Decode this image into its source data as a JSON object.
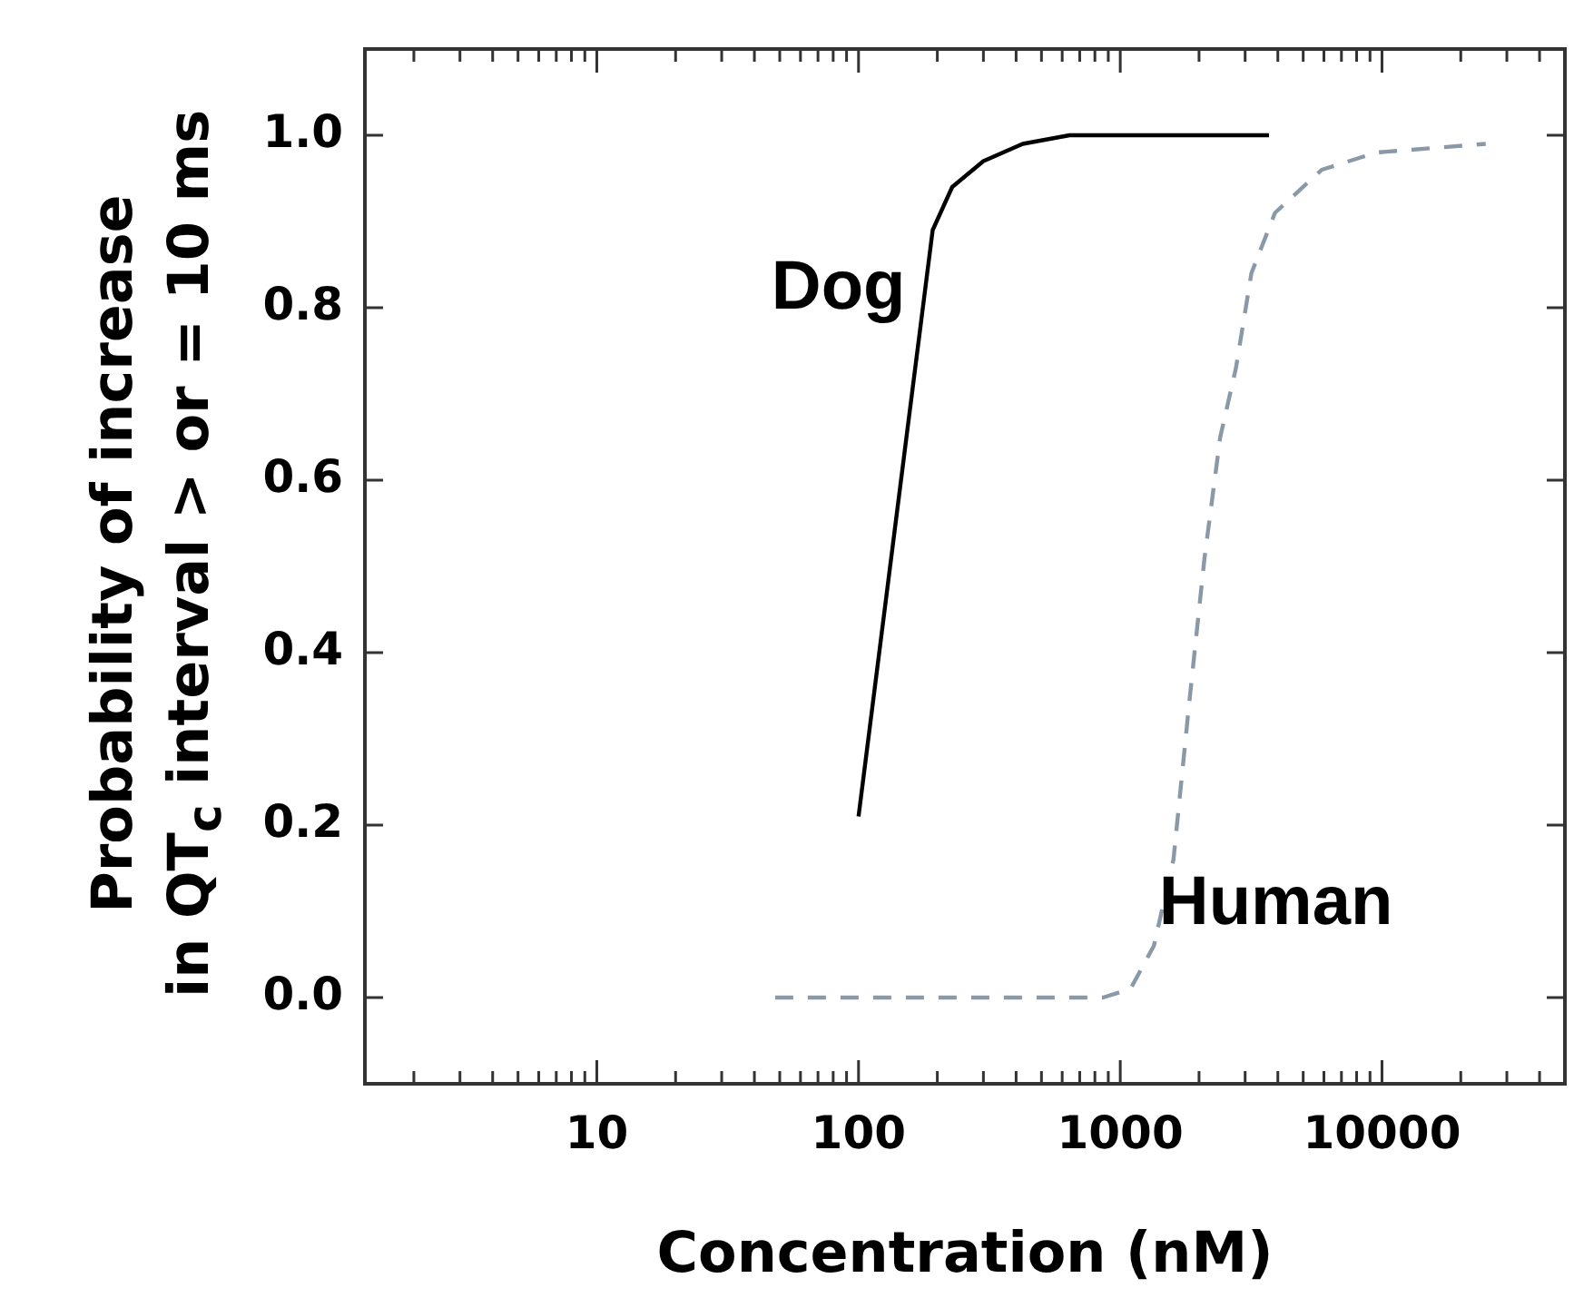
{
  "chart_data": {
    "type": "line",
    "xlabel": "Concentration (nM)",
    "ylabel": "Probability of increase\nin QT$_{c}$ interval > or = 10 ms",
    "log": "x",
    "grid": false,
    "legend": false,
    "marker": "none",
    "xlim": [
      1.3,
      50000
    ],
    "ylim": [
      -0.1,
      1.1
    ],
    "xticks": [
      {
        "value": 2,
        "label": null
      },
      {
        "value": 3,
        "label": null
      },
      {
        "value": 4,
        "label": null
      },
      {
        "value": 5,
        "label": null
      },
      {
        "value": 6,
        "label": null
      },
      {
        "value": 7,
        "label": null
      },
      {
        "value": 8,
        "label": null
      },
      {
        "value": 9,
        "label": null
      },
      10,
      {
        "value": 20,
        "label": null
      },
      {
        "value": 30,
        "label": null
      },
      {
        "value": 40,
        "label": null
      },
      {
        "value": 50,
        "label": null
      },
      {
        "value": 60,
        "label": null
      },
      {
        "value": 70,
        "label": null
      },
      {
        "value": 80,
        "label": null
      },
      {
        "value": 90,
        "label": null
      },
      100,
      {
        "value": 200,
        "label": null
      },
      {
        "value": 300,
        "label": null
      },
      {
        "value": 400,
        "label": null
      },
      {
        "value": 500,
        "label": null
      },
      {
        "value": 600,
        "label": null
      },
      {
        "value": 700,
        "label": null
      },
      {
        "value": 800,
        "label": null
      },
      {
        "value": 900,
        "label": null
      },
      1000,
      {
        "value": 2000,
        "label": null
      },
      {
        "value": 3000,
        "label": null
      },
      {
        "value": 4000,
        "label": null
      },
      {
        "value": 5000,
        "label": null
      },
      {
        "value": 6000,
        "label": null
      },
      {
        "value": 7000,
        "label": null
      },
      {
        "value": 8000,
        "label": null
      },
      {
        "value": 9000,
        "label": null
      },
      10000,
      {
        "value": 20000,
        "label": null
      },
      {
        "value": 30000,
        "label": null
      },
      {
        "value": 40000,
        "label": null
      }
    ],
    "yticks": [
      {
        "value": 0,
        "label": "0.0"
      },
      {
        "value": 0.2,
        "label": "0.2"
      },
      {
        "value": 0.4,
        "label": "0.4"
      },
      {
        "value": 0.6,
        "label": "0.6"
      },
      {
        "value": 0.8,
        "label": "0.8"
      },
      {
        "value": 1,
        "label": "1.0"
      }
    ],
    "series": [
      {
        "name": "Dog",
        "color": "#000000",
        "line_style": "solid",
        "x": [
          100,
          151,
          192,
          228,
          300,
          424,
          640,
          3700
        ],
        "values": [
          0.21,
          0.64,
          0.89,
          0.94,
          0.97,
          0.99,
          1.0,
          1.0
        ]
      },
      {
        "name": "Human",
        "color": "#8a99a8",
        "line_style": "dashed",
        "x": [
          48,
          859,
          1094,
          1344,
          1597,
          1832,
          2099,
          2410,
          2767,
          3170,
          3900,
          5890,
          9530,
          24900
        ],
        "values": [
          0,
          0,
          0.01,
          0.06,
          0.16,
          0.34,
          0.51,
          0.65,
          0.73,
          0.84,
          0.91,
          0.96,
          0.98,
          0.99
        ]
      }
    ]
  }
}
